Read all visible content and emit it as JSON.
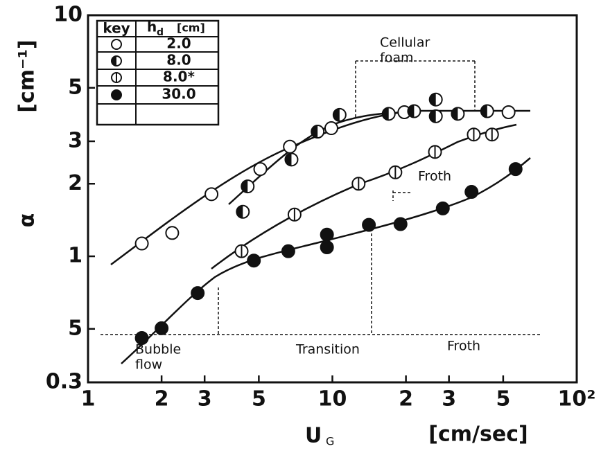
{
  "chart_data": {
    "type": "scatter",
    "xlabel": "U",
    "xlabel_sub": "G",
    "xunit": "[cm/sec]",
    "ylabel": "α",
    "yunit": "[cm⁻¹]",
    "xscale": "log",
    "yscale": "log",
    "xlim": [
      1,
      100
    ],
    "xticks": [
      1,
      2,
      3,
      5,
      10,
      {
        "value": 20,
        "label": "2"
      },
      {
        "value": 30,
        "label": "3"
      },
      {
        "value": 50,
        "label": "5"
      },
      {
        "value": 100,
        "label": "10²"
      }
    ],
    "ylim": [
      0.3,
      10
    ],
    "yticks": [
      0.3,
      {
        "value": 0.5,
        "label": "5"
      },
      1,
      2,
      3,
      5,
      10
    ],
    "legend": {
      "corner": "top-left",
      "key_header": "key",
      "h_header": "h",
      "h_sub": "d",
      "unit_header": "[cm]"
    },
    "series": [
      {
        "name": "2.0",
        "marker": "open",
        "color": "#111",
        "x": [
          1.66,
          2.21,
          3.2,
          5.07,
          6.7,
          9.9,
          19.7,
          52.6
        ],
        "values": [
          1.13,
          1.25,
          1.81,
          2.3,
          2.85,
          3.4,
          3.96,
          3.96
        ]
      },
      {
        "name": "8.0",
        "marker": "half",
        "color": "#111",
        "x": [
          4.5,
          4.3,
          6.8,
          8.7,
          10.7,
          17,
          21.6,
          26.5,
          26.5,
          32.6,
          43
        ],
        "values": [
          1.95,
          1.53,
          2.52,
          3.29,
          3.86,
          3.9,
          4.0,
          4.47,
          3.81,
          3.9,
          4.0
        ]
      },
      {
        "name": "8.0*",
        "marker": "bar",
        "color": "#111",
        "x": [
          4.25,
          7.0,
          12.8,
          18.1,
          26.3,
          37.9,
          45
        ],
        "values": [
          1.05,
          1.49,
          2.0,
          2.23,
          2.71,
          3.2,
          3.2
        ]
      },
      {
        "name": "30.0",
        "marker": "filled",
        "color": "#111",
        "x": [
          1.66,
          2.0,
          2.81,
          4.77,
          6.6,
          9.5,
          9.5,
          14.1,
          19.0,
          28.3,
          37.1,
          56.2
        ],
        "values": [
          0.458,
          0.503,
          0.704,
          0.96,
          1.05,
          1.23,
          1.09,
          1.35,
          1.36,
          1.58,
          1.85,
          2.3
        ]
      }
    ],
    "annotations": [
      {
        "lines": [
          "Cellular",
          "foam"
        ]
      },
      {
        "lines": [
          "Froth"
        ]
      },
      {
        "lines": [
          "Bubble",
          "flow"
        ]
      },
      {
        "lines": [
          "Transition"
        ]
      },
      {
        "lines": [
          "Froth"
        ]
      }
    ]
  }
}
